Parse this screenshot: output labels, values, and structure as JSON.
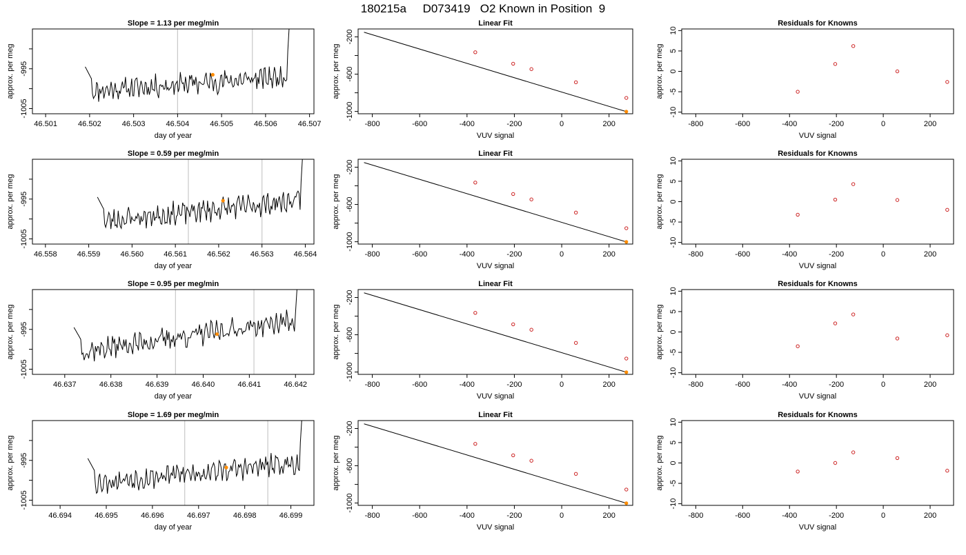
{
  "figure_title": "180215a     D073419   O2 Known in Position  9",
  "colors": {
    "trace": "#000000",
    "vline": "#c8c8c8",
    "highlight": "#ff8c00",
    "points": "#cc2222",
    "fit": "#000000"
  },
  "chart_data": [
    {
      "type": "line",
      "row": 0,
      "col": 0,
      "title": "Slope =  1.13  per meg/min",
      "xlabel": "day of year",
      "ylabel": "approx. per meg",
      "xlim": [
        46.5007,
        46.5071
      ],
      "ylim": [
        -1006.3,
        -985
      ],
      "xticks": [
        46.501,
        46.502,
        46.503,
        46.504,
        46.505,
        46.506,
        46.507
      ],
      "xticklabels": [
        "46.501",
        "46.502",
        "46.503",
        "46.504",
        "46.505",
        "46.506",
        "46.507"
      ],
      "yticks": [
        -1005,
        -1000,
        -995,
        -990
      ],
      "yticklabels": [
        "-1005",
        "",
        "-995",
        ""
      ],
      "vlines": [
        46.504,
        46.5057
      ],
      "trace": {
        "x_start": 46.5019,
        "x_end": 46.5066,
        "seed": 11,
        "rise_rate": 1.1
      },
      "highlight": {
        "x": 46.5048,
        "y": -996.5
      }
    },
    {
      "type": "line",
      "row": 1,
      "col": 0,
      "title": "Slope =  0.59  per meg/min",
      "xlabel": "day of year",
      "ylabel": "approx. per meg",
      "xlim": [
        46.5577,
        46.5642
      ],
      "ylim": [
        -1006.3,
        -985
      ],
      "xticks": [
        46.558,
        46.559,
        46.56,
        46.561,
        46.562,
        46.563,
        46.564
      ],
      "xticklabels": [
        "46.558",
        "46.559",
        "46.560",
        "46.561",
        "46.562",
        "46.563",
        "46.564"
      ],
      "yticks": [
        -1005,
        -1000,
        -995,
        -990
      ],
      "yticklabels": [
        "-1005",
        "",
        "-995",
        ""
      ],
      "vlines": [
        46.5613,
        46.563
      ],
      "trace": {
        "x_start": 46.5592,
        "x_end": 46.564,
        "seed": 23,
        "rise_rate": 1.6
      },
      "highlight": {
        "x": 46.5621,
        "y": -995.4
      }
    },
    {
      "type": "line",
      "row": 2,
      "col": 0,
      "title": "Slope =  0.95  per meg/min",
      "xlabel": "day of year",
      "ylabel": "approx. per meg",
      "xlim": [
        46.6363,
        46.6424
      ],
      "ylim": [
        -1006.3,
        -985
      ],
      "xticks": [
        46.637,
        46.638,
        46.639,
        46.64,
        46.641,
        46.642
      ],
      "xticklabels": [
        "46.637",
        "46.638",
        "46.639",
        "46.640",
        "46.641",
        "46.642"
      ],
      "yticks": [
        -1005,
        -1000,
        -995,
        -990
      ],
      "yticklabels": [
        "-1005",
        "",
        "-995",
        ""
      ],
      "vlines": [
        46.6394,
        46.6411
      ],
      "trace": {
        "x_start": 46.6372,
        "x_end": 46.6421,
        "seed": 37,
        "rise_rate": 2.4
      },
      "highlight": {
        "x": 46.6403,
        "y": -996.2
      }
    },
    {
      "type": "line",
      "row": 3,
      "col": 0,
      "title": "Slope =  1.69  per meg/min",
      "xlabel": "day of year",
      "ylabel": "approx. per meg",
      "xlim": [
        46.6934,
        46.6995
      ],
      "ylim": [
        -1006.3,
        -985
      ],
      "xticks": [
        46.694,
        46.695,
        46.696,
        46.697,
        46.698,
        46.699
      ],
      "xticklabels": [
        "46.694",
        "46.695",
        "46.696",
        "46.697",
        "46.698",
        "46.699"
      ],
      "yticks": [
        -1005,
        -1000,
        -995,
        -990
      ],
      "yticklabels": [
        "-1005",
        "",
        "-995",
        ""
      ],
      "vlines": [
        46.6967,
        46.6985
      ],
      "trace": {
        "x_start": 46.6946,
        "x_end": 46.6993,
        "seed": 53,
        "rise_rate": 1.5
      },
      "highlight": {
        "x": 46.6976,
        "y": -996.8
      }
    },
    {
      "type": "scatter",
      "row": 0,
      "col": 1,
      "title": "Linear Fit",
      "xlabel": "VUV signal",
      "ylabel": "approx. per meg",
      "xlim": [
        -860,
        300
      ],
      "ylim": [
        -1025,
        -115
      ],
      "xticks": [
        -800,
        -600,
        -400,
        -200,
        0,
        200
      ],
      "xticklabels": [
        "-800",
        "-600",
        "-400",
        "-200",
        "0",
        "200"
      ],
      "yticks": [
        -1000,
        -800,
        -600,
        -400,
        -200
      ],
      "yticklabels": [
        "-1000",
        "",
        "-600",
        "",
        "-200"
      ],
      "points": {
        "x": [
          -365,
          -205,
          -128,
          60,
          273
        ],
        "y": [
          -365,
          -488,
          -546,
          -687,
          -855
        ]
      },
      "fit_line": {
        "x": [
          -835,
          273
        ],
        "y": [
          -150,
          -1002
        ]
      },
      "highlight": {
        "x": 273,
        "y": -1002
      }
    },
    {
      "type": "scatter",
      "row": 1,
      "col": 1,
      "title": "Linear Fit",
      "xlabel": "VUV signal",
      "ylabel": "approx. per meg",
      "xlim": [
        -860,
        300
      ],
      "ylim": [
        -1025,
        -115
      ],
      "xticks": [
        -800,
        -600,
        -400,
        -200,
        0,
        200
      ],
      "xticklabels": [
        "-800",
        "-600",
        "-400",
        "-200",
        "0",
        "200"
      ],
      "yticks": [
        -1000,
        -800,
        -600,
        -400,
        -200
      ],
      "yticklabels": [
        "-1000",
        "",
        "-600",
        "",
        "-200"
      ],
      "points": {
        "x": [
          -365,
          -205,
          -128,
          60,
          273
        ],
        "y": [
          -365,
          -488,
          -546,
          -687,
          -855
        ]
      },
      "fit_line": {
        "x": [
          -835,
          273
        ],
        "y": [
          -150,
          -1002
        ]
      },
      "highlight": {
        "x": 273,
        "y": -1002
      }
    },
    {
      "type": "scatter",
      "row": 2,
      "col": 1,
      "title": "Linear Fit",
      "xlabel": "VUV signal",
      "ylabel": "approx. per meg",
      "xlim": [
        -860,
        300
      ],
      "ylim": [
        -1025,
        -115
      ],
      "xticks": [
        -800,
        -600,
        -400,
        -200,
        0,
        200
      ],
      "xticklabels": [
        "-800",
        "-600",
        "-400",
        "-200",
        "0",
        "200"
      ],
      "yticks": [
        -1000,
        -800,
        -600,
        -400,
        -200
      ],
      "yticklabels": [
        "-1000",
        "",
        "-600",
        "",
        "-200"
      ],
      "points": {
        "x": [
          -365,
          -205,
          -128,
          60,
          273
        ],
        "y": [
          -365,
          -488,
          -546,
          -687,
          -855
        ]
      },
      "fit_line": {
        "x": [
          -835,
          273
        ],
        "y": [
          -150,
          -1002
        ]
      },
      "highlight": {
        "x": 273,
        "y": -1002
      }
    },
    {
      "type": "scatter",
      "row": 3,
      "col": 1,
      "title": "Linear Fit",
      "xlabel": "VUV signal",
      "ylabel": "approx. per meg",
      "xlim": [
        -860,
        300
      ],
      "ylim": [
        -1025,
        -115
      ],
      "xticks": [
        -800,
        -600,
        -400,
        -200,
        0,
        200
      ],
      "xticklabels": [
        "-800",
        "-600",
        "-400",
        "-200",
        "0",
        "200"
      ],
      "yticks": [
        -1000,
        -800,
        -600,
        -400,
        -200
      ],
      "yticklabels": [
        "-1000",
        "",
        "-600",
        "",
        "-200"
      ],
      "points": {
        "x": [
          -365,
          -205,
          -128,
          60,
          273
        ],
        "y": [
          -365,
          -488,
          -546,
          -687,
          -855
        ]
      },
      "fit_line": {
        "x": [
          -835,
          273
        ],
        "y": [
          -150,
          -1002
        ]
      },
      "highlight": {
        "x": 273,
        "y": -1002
      }
    },
    {
      "type": "scatter",
      "row": 0,
      "col": 2,
      "title": "Residuals for Knowns",
      "xlabel": "VUV signal",
      "ylabel": "approx. per meg",
      "xlim": [
        -860,
        300
      ],
      "ylim": [
        -10.4,
        10.4
      ],
      "xticks": [
        -800,
        -600,
        -400,
        -200,
        0,
        200
      ],
      "xticklabels": [
        "-800",
        "-600",
        "-400",
        "-200",
        "0",
        "200"
      ],
      "yticks": [
        -10,
        -5,
        0,
        5,
        10
      ],
      "yticklabels": [
        "-10",
        "-5",
        "0",
        "5",
        "10"
      ],
      "points": {
        "x": [
          -365,
          -205,
          -128,
          60,
          273
        ],
        "y": [
          -5.0,
          1.8,
          6.2,
          0.0,
          -2.6
        ]
      }
    },
    {
      "type": "scatter",
      "row": 1,
      "col": 2,
      "title": "Residuals for Knowns",
      "xlabel": "VUV signal",
      "ylabel": "approx. per meg",
      "xlim": [
        -860,
        300
      ],
      "ylim": [
        -10.4,
        10.4
      ],
      "xticks": [
        -800,
        -600,
        -400,
        -200,
        0,
        200
      ],
      "xticklabels": [
        "-800",
        "-600",
        "-400",
        "-200",
        "0",
        "200"
      ],
      "yticks": [
        -10,
        -5,
        0,
        5,
        10
      ],
      "yticklabels": [
        "-10",
        "-5",
        "0",
        "5",
        "10"
      ],
      "points": {
        "x": [
          -365,
          -205,
          -128,
          60,
          273
        ],
        "y": [
          -3.2,
          0.5,
          4.3,
          0.4,
          -2.0
        ]
      }
    },
    {
      "type": "scatter",
      "row": 2,
      "col": 2,
      "title": "Residuals for Knowns",
      "xlabel": "VUV signal",
      "ylabel": "approx. per meg",
      "xlim": [
        -860,
        300
      ],
      "ylim": [
        -10.4,
        10.4
      ],
      "xticks": [
        -800,
        -600,
        -400,
        -200,
        0,
        200
      ],
      "xticklabels": [
        "-800",
        "-600",
        "-400",
        "-200",
        "0",
        "200"
      ],
      "yticks": [
        -10,
        -5,
        0,
        5,
        10
      ],
      "yticklabels": [
        "-10",
        "-5",
        "0",
        "5",
        "10"
      ],
      "points": {
        "x": [
          -365,
          -205,
          -128,
          60,
          273
        ],
        "y": [
          -3.5,
          2.1,
          4.3,
          -1.6,
          -0.8
        ]
      }
    },
    {
      "type": "scatter",
      "row": 3,
      "col": 2,
      "title": "Residuals for Knowns",
      "xlabel": "VUV signal",
      "ylabel": "approx. per meg",
      "xlim": [
        -860,
        300
      ],
      "ylim": [
        -10.4,
        10.4
      ],
      "xticks": [
        -800,
        -600,
        -400,
        -200,
        0,
        200
      ],
      "xticklabels": [
        "-800",
        "-600",
        "-400",
        "-200",
        "0",
        "200"
      ],
      "yticks": [
        -10,
        -5,
        0,
        5,
        10
      ],
      "yticklabels": [
        "-10",
        "-5",
        "0",
        "5",
        "10"
      ],
      "points": {
        "x": [
          -365,
          -205,
          -128,
          60,
          273
        ],
        "y": [
          -2.1,
          0.0,
          2.6,
          1.2,
          -1.9
        ]
      }
    }
  ]
}
